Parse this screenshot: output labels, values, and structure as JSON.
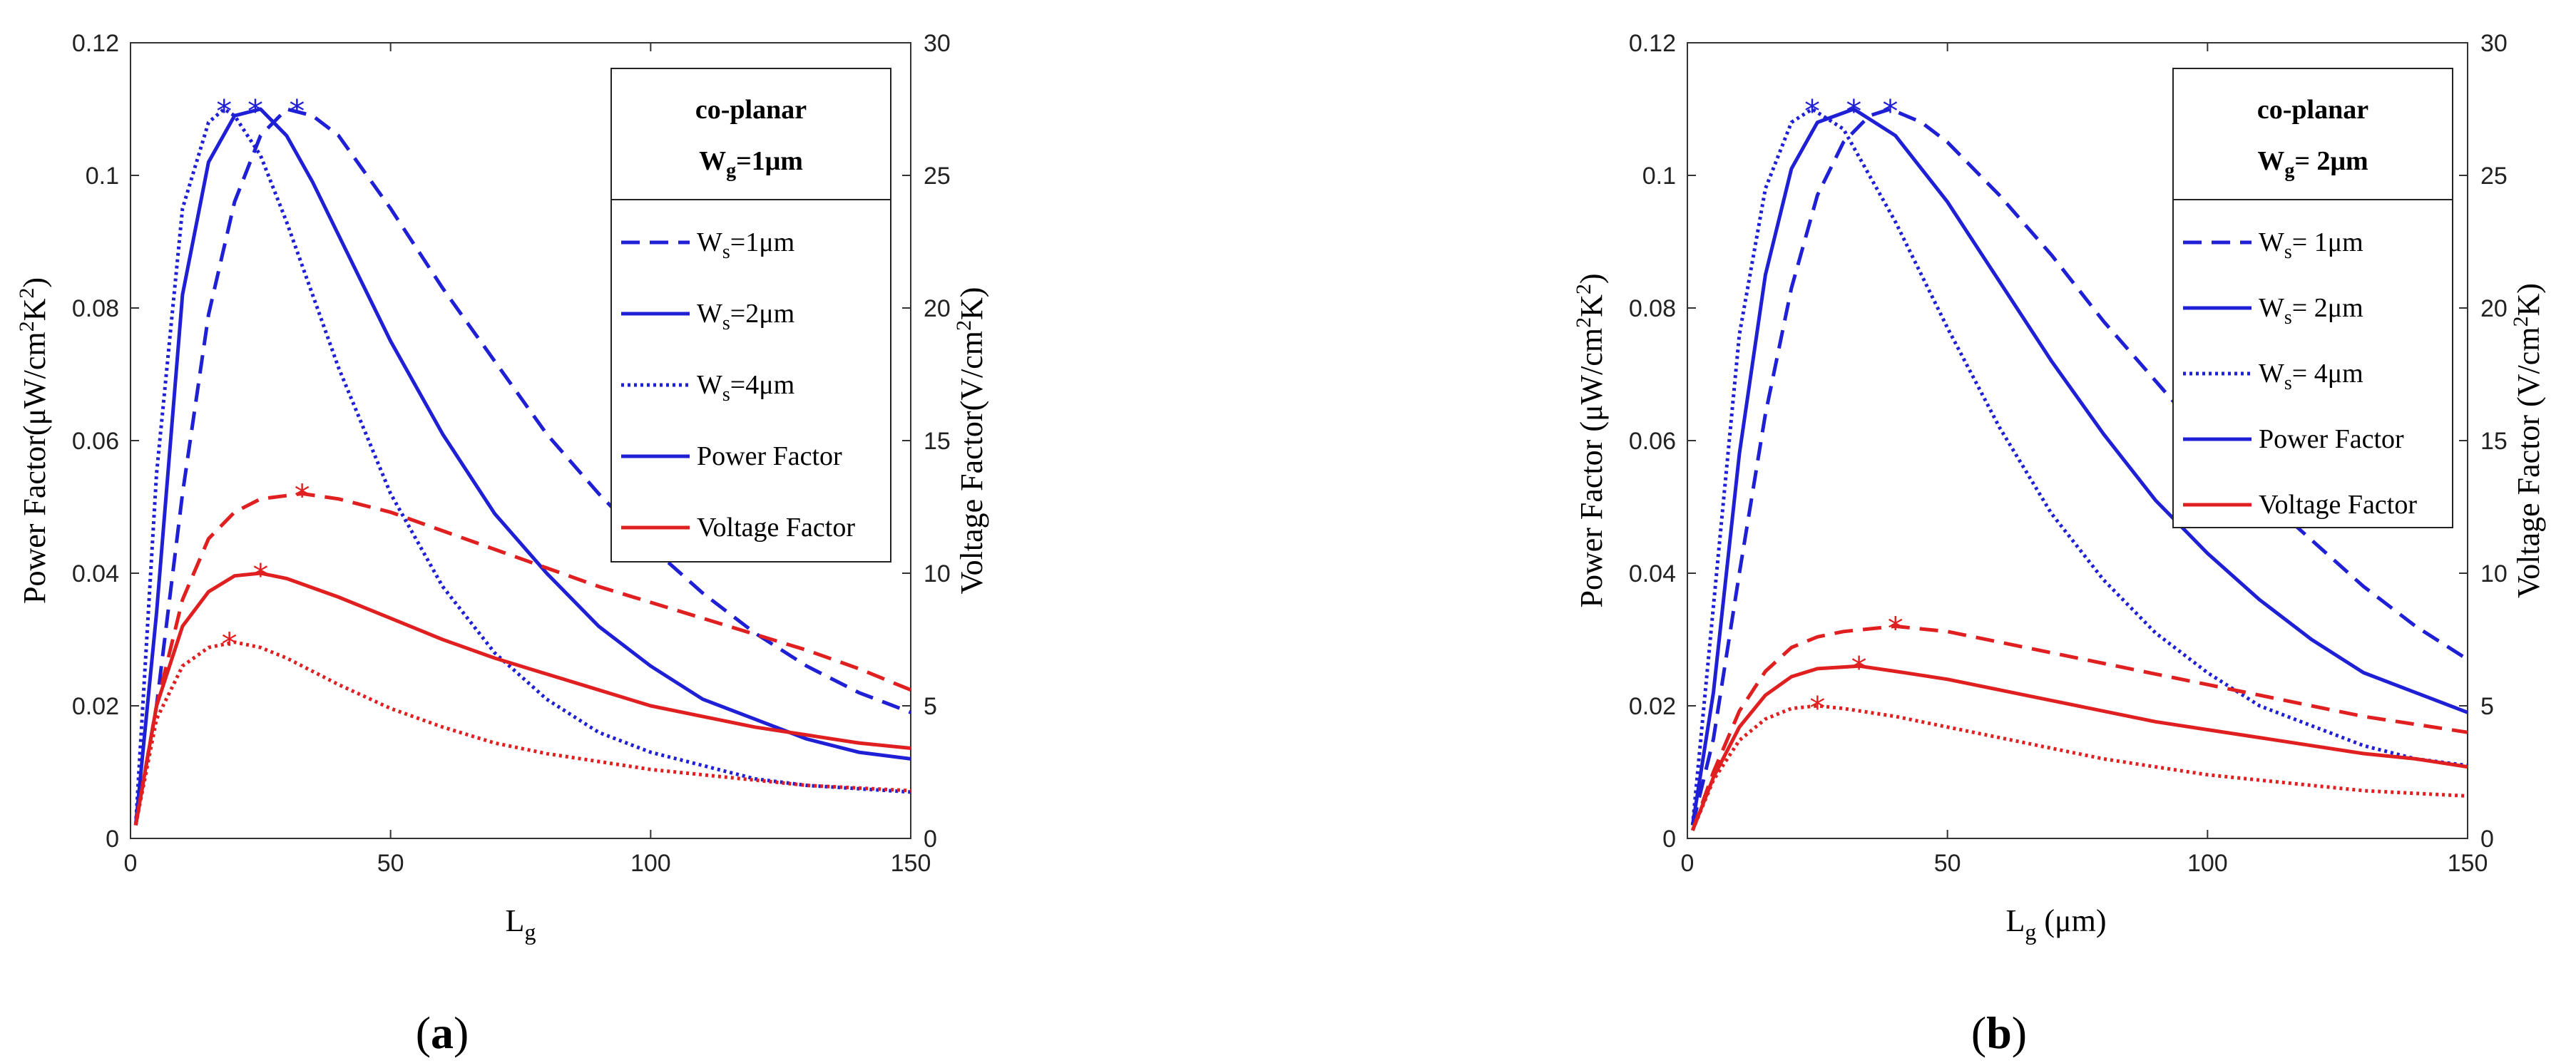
{
  "chart_data": [
    {
      "type": "line",
      "panel_label": "a",
      "x_range": [
        0,
        150
      ],
      "x_ticks": [
        0,
        50,
        100,
        150
      ],
      "xlabel": {
        "main": "L",
        "sub": "g",
        "unit": ""
      },
      "ylabel_left": {
        "prefix": "Power Factor(μW/cm",
        "sup": "2",
        "mid": "K",
        "sup2": "2",
        "suffix": ")"
      },
      "ylabel_right": {
        "prefix": "Voltage Factor(V/cm",
        "sup": "2",
        "suffix": "K)"
      },
      "ylim_left": [
        0,
        0.12
      ],
      "yticks_left": [
        "0",
        "0.02",
        "0.04",
        "0.06",
        "0.08",
        "0.1",
        "0.12"
      ],
      "ylim_right": [
        0,
        30
      ],
      "yticks_right": [
        "0",
        "5",
        "10",
        "15",
        "20",
        "25",
        "30"
      ],
      "legend_title": {
        "line1": "co-planar",
        "line2_main": "W",
        "line2_sub": "g",
        "line2_rest": "=1μm"
      },
      "legend_entries": [
        {
          "main": "W",
          "sub": "s",
          "rest": "=1μm",
          "style": "dashed",
          "color": "#1f1fd6"
        },
        {
          "main": "W",
          "sub": "s",
          "rest": "=2μm",
          "style": "solid",
          "color": "#1f1fd6"
        },
        {
          "main": "W",
          "sub": "s",
          "rest": "=4μm",
          "style": "dotted",
          "color": "#1f1fd6"
        },
        {
          "main": "Power Factor",
          "sub": "",
          "rest": "",
          "style": "solid",
          "color": "#1f1fd6"
        },
        {
          "main": "Voltage Factor",
          "sub": "",
          "rest": "",
          "style": "solid",
          "color": "#e02020"
        }
      ],
      "series": [
        {
          "name": "Power Factor W_s=1μm",
          "axis": "left",
          "style": "dashed",
          "color": "#1f1fd6",
          "x": [
            1,
            5,
            10,
            15,
            20,
            25,
            30,
            35,
            40,
            50,
            60,
            70,
            80,
            90,
            100,
            110,
            120,
            130,
            140,
            150
          ],
          "y": [
            0.002,
            0.02,
            0.052,
            0.079,
            0.096,
            0.106,
            0.11,
            0.109,
            0.106,
            0.095,
            0.083,
            0.072,
            0.061,
            0.052,
            0.044,
            0.037,
            0.031,
            0.026,
            0.022,
            0.019
          ],
          "peak": [
            32,
            0.11
          ]
        },
        {
          "name": "Power Factor W_s=2μm",
          "axis": "left",
          "style": "solid",
          "color": "#1f1fd6",
          "x": [
            1,
            5,
            10,
            15,
            20,
            25,
            30,
            35,
            40,
            50,
            60,
            70,
            80,
            90,
            100,
            110,
            120,
            130,
            140,
            150
          ],
          "y": [
            0.002,
            0.034,
            0.082,
            0.102,
            0.109,
            0.11,
            0.106,
            0.099,
            0.091,
            0.075,
            0.061,
            0.049,
            0.04,
            0.032,
            0.026,
            0.021,
            0.018,
            0.015,
            0.013,
            0.012
          ],
          "peak": [
            24,
            0.11
          ]
        },
        {
          "name": "Power Factor W_s=4μm",
          "axis": "left",
          "style": "dotted",
          "color": "#1f1fd6",
          "x": [
            1,
            5,
            10,
            15,
            18,
            20,
            25,
            30,
            35,
            40,
            50,
            60,
            70,
            80,
            90,
            100,
            110,
            120,
            130,
            140,
            150
          ],
          "y": [
            0.002,
            0.055,
            0.095,
            0.108,
            0.11,
            0.109,
            0.103,
            0.093,
            0.082,
            0.071,
            0.052,
            0.038,
            0.028,
            0.021,
            0.016,
            0.013,
            0.011,
            0.009,
            0.008,
            0.0075,
            0.007
          ],
          "peak": [
            18,
            0.11
          ]
        },
        {
          "name": "Voltage Factor W_s=1μm",
          "axis": "right",
          "style": "dashed",
          "color": "#e02020",
          "x": [
            1,
            5,
            10,
            15,
            20,
            25,
            33,
            40,
            50,
            60,
            70,
            80,
            90,
            100,
            110,
            120,
            130,
            140,
            150
          ],
          "y": [
            0.5,
            5.0,
            9.0,
            11.3,
            12.3,
            12.8,
            13.0,
            12.8,
            12.3,
            11.6,
            10.9,
            10.2,
            9.5,
            8.9,
            8.3,
            7.7,
            7.1,
            6.4,
            5.6
          ],
          "peak": [
            33,
            13.0
          ]
        },
        {
          "name": "Voltage Factor W_s=2μm",
          "axis": "right",
          "style": "solid",
          "color": "#e02020",
          "x": [
            1,
            5,
            10,
            15,
            20,
            25,
            30,
            40,
            50,
            60,
            70,
            80,
            90,
            100,
            110,
            120,
            130,
            140,
            150
          ],
          "y": [
            0.5,
            5.0,
            8.0,
            9.3,
            9.9,
            10.0,
            9.8,
            9.1,
            8.3,
            7.5,
            6.8,
            6.2,
            5.6,
            5.0,
            4.6,
            4.2,
            3.9,
            3.6,
            3.4
          ],
          "peak": [
            25,
            10.0
          ]
        },
        {
          "name": "Voltage Factor W_s=4μm",
          "axis": "right",
          "style": "dotted",
          "color": "#e02020",
          "x": [
            1,
            5,
            10,
            15,
            20,
            25,
            30,
            40,
            50,
            60,
            70,
            80,
            90,
            100,
            110,
            120,
            130,
            140,
            150
          ],
          "y": [
            0.5,
            4.5,
            6.5,
            7.2,
            7.4,
            7.2,
            6.8,
            5.8,
            4.9,
            4.2,
            3.6,
            3.2,
            2.9,
            2.6,
            2.4,
            2.2,
            2.0,
            1.9,
            1.8
          ],
          "peak": [
            19,
            7.4
          ]
        }
      ]
    },
    {
      "type": "line",
      "panel_label": "b",
      "x_range": [
        0,
        150
      ],
      "x_ticks": [
        0,
        50,
        100,
        150
      ],
      "xlabel": {
        "main": "L",
        "sub": "g",
        "unit": "(μm)"
      },
      "ylabel_left": {
        "prefix": "Power Factor  (μW/cm",
        "sup": "2",
        "mid": "K",
        "sup2": "2",
        "suffix": ")"
      },
      "ylabel_right": {
        "prefix": "Voltage Factor  (V/cm",
        "sup": "2",
        "suffix": "K)"
      },
      "ylim_left": [
        0,
        0.12
      ],
      "yticks_left": [
        "0",
        "0.02",
        "0.04",
        "0.06",
        "0.08",
        "0.1",
        "0.12"
      ],
      "ylim_right": [
        0,
        30
      ],
      "yticks_right": [
        "0",
        "5",
        "10",
        "15",
        "20",
        "25",
        "30"
      ],
      "legend_title": {
        "line1": "co-planar",
        "line2_main": "W",
        "line2_sub": "g",
        "line2_rest": "= 2μm"
      },
      "legend_entries": [
        {
          "main": "W",
          "sub": "s",
          "rest": "= 1μm",
          "style": "dashed",
          "color": "#1f1fd6"
        },
        {
          "main": "W",
          "sub": "s",
          "rest": "= 2μm",
          "style": "solid",
          "color": "#1f1fd6"
        },
        {
          "main": "W",
          "sub": "s",
          "rest": "= 4μm",
          "style": "dotted",
          "color": "#1f1fd6"
        },
        {
          "main": "Power Factor",
          "sub": "",
          "rest": "",
          "style": "solid",
          "color": "#1f1fd6"
        },
        {
          "main": "Voltage Factor",
          "sub": "",
          "rest": "",
          "style": "solid",
          "color": "#e02020"
        }
      ],
      "series": [
        {
          "name": "Power Factor W_s=1μm",
          "axis": "left",
          "style": "dashed",
          "color": "#1f1fd6",
          "x": [
            1,
            5,
            10,
            15,
            20,
            25,
            30,
            35,
            39,
            45,
            50,
            60,
            70,
            80,
            90,
            100,
            110,
            120,
            130,
            140,
            150
          ],
          "y": [
            0.002,
            0.015,
            0.04,
            0.064,
            0.083,
            0.097,
            0.105,
            0.109,
            0.11,
            0.108,
            0.105,
            0.097,
            0.088,
            0.078,
            0.069,
            0.06,
            0.052,
            0.045,
            0.038,
            0.032,
            0.027
          ],
          "peak": [
            39,
            0.11
          ]
        },
        {
          "name": "Power Factor W_s=2μm",
          "axis": "left",
          "style": "solid",
          "color": "#1f1fd6",
          "x": [
            1,
            5,
            10,
            15,
            20,
            25,
            32,
            40,
            50,
            60,
            70,
            80,
            90,
            100,
            110,
            120,
            130,
            140,
            150
          ],
          "y": [
            0.002,
            0.022,
            0.058,
            0.085,
            0.101,
            0.108,
            0.11,
            0.106,
            0.096,
            0.084,
            0.072,
            0.061,
            0.051,
            0.043,
            0.036,
            0.03,
            0.025,
            0.022,
            0.019
          ],
          "peak": [
            32,
            0.11
          ]
        },
        {
          "name": "Power Factor W_s=4μm",
          "axis": "left",
          "style": "dotted",
          "color": "#1f1fd6",
          "x": [
            1,
            5,
            10,
            15,
            20,
            24,
            30,
            40,
            50,
            60,
            70,
            80,
            90,
            100,
            110,
            120,
            130,
            140,
            150
          ],
          "y": [
            0.002,
            0.035,
            0.076,
            0.098,
            0.108,
            0.11,
            0.107,
            0.093,
            0.077,
            0.062,
            0.049,
            0.039,
            0.031,
            0.025,
            0.02,
            0.017,
            0.014,
            0.012,
            0.011
          ],
          "peak": [
            24,
            0.11
          ]
        },
        {
          "name": "Voltage Factor W_s=1μm",
          "axis": "right",
          "style": "dashed",
          "color": "#e02020",
          "x": [
            1,
            5,
            10,
            15,
            20,
            25,
            30,
            40,
            50,
            60,
            70,
            80,
            90,
            100,
            110,
            120,
            130,
            140,
            150
          ],
          "y": [
            0.3,
            2.5,
            4.8,
            6.3,
            7.2,
            7.6,
            7.8,
            8.0,
            7.8,
            7.4,
            7.0,
            6.6,
            6.2,
            5.8,
            5.4,
            5.0,
            4.6,
            4.3,
            4.0
          ],
          "peak": [
            40,
            8.0
          ]
        },
        {
          "name": "Voltage Factor W_s=2μm",
          "axis": "right",
          "style": "solid",
          "color": "#e02020",
          "x": [
            1,
            5,
            10,
            15,
            20,
            25,
            33,
            40,
            50,
            60,
            70,
            80,
            90,
            100,
            110,
            120,
            130,
            140,
            150
          ],
          "y": [
            0.3,
            2.3,
            4.2,
            5.4,
            6.1,
            6.4,
            6.5,
            6.3,
            6.0,
            5.6,
            5.2,
            4.8,
            4.4,
            4.1,
            3.8,
            3.5,
            3.2,
            3.0,
            2.7
          ],
          "peak": [
            33,
            6.5
          ]
        },
        {
          "name": "Voltage Factor W_s=4μm",
          "axis": "right",
          "style": "dotted",
          "color": "#e02020",
          "x": [
            1,
            5,
            10,
            15,
            20,
            25,
            30,
            40,
            50,
            60,
            70,
            80,
            90,
            100,
            110,
            120,
            130,
            140,
            150
          ],
          "y": [
            0.3,
            2.2,
            3.7,
            4.5,
            4.9,
            5.0,
            4.9,
            4.6,
            4.2,
            3.8,
            3.4,
            3.0,
            2.7,
            2.4,
            2.2,
            2.0,
            1.8,
            1.7,
            1.6
          ],
          "peak": [
            25,
            5.0
          ]
        }
      ]
    }
  ]
}
